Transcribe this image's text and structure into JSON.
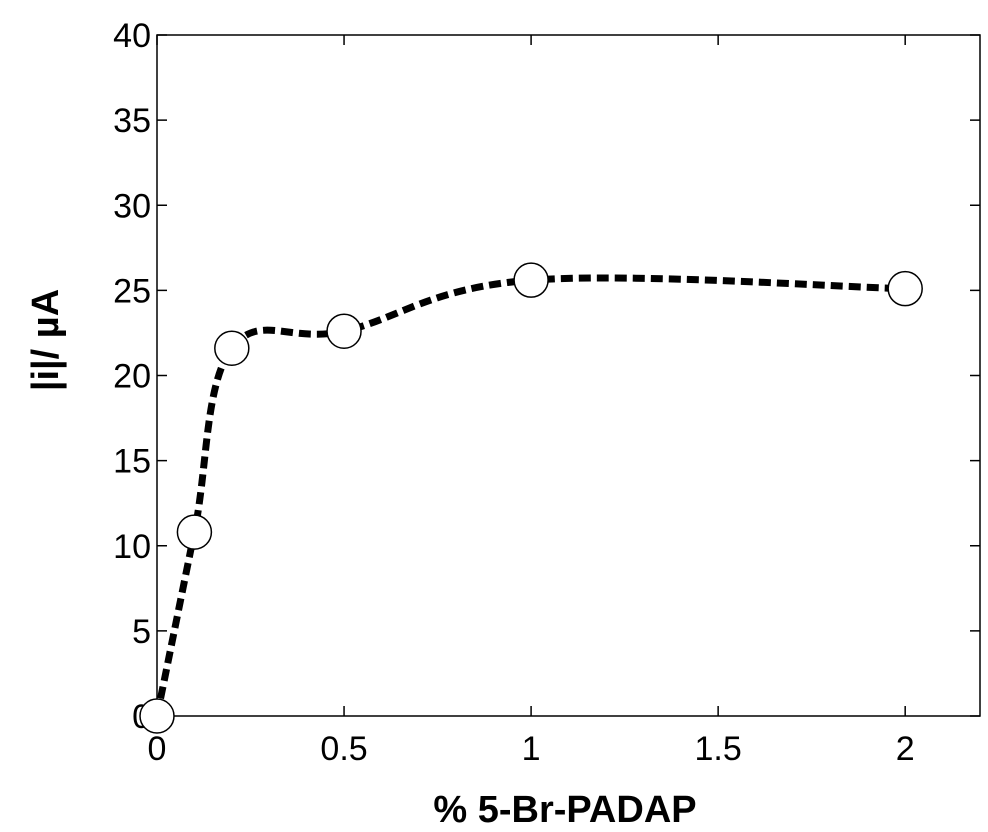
{
  "chart_data": {
    "type": "line",
    "title": "",
    "xlabel": "% 5-Br-PADAP",
    "ylabel": "|i|/ µA",
    "xlim": [
      0,
      2.2
    ],
    "ylim": [
      0,
      40
    ],
    "x_ticks": [
      "0",
      "0.5",
      "1",
      "1.5",
      "2"
    ],
    "y_ticks": [
      "0",
      "5",
      "10",
      "15",
      "20",
      "25",
      "30",
      "35",
      "40"
    ],
    "grid": false,
    "legend": "none",
    "line_style": "dashed smooth",
    "marker": "open circle",
    "series": [
      {
        "x": [
          0,
          0.1,
          0.2,
          0.5,
          1,
          2
        ],
        "y": [
          0,
          10.8,
          21.6,
          22.6,
          25.6,
          25.1
        ]
      }
    ]
  }
}
